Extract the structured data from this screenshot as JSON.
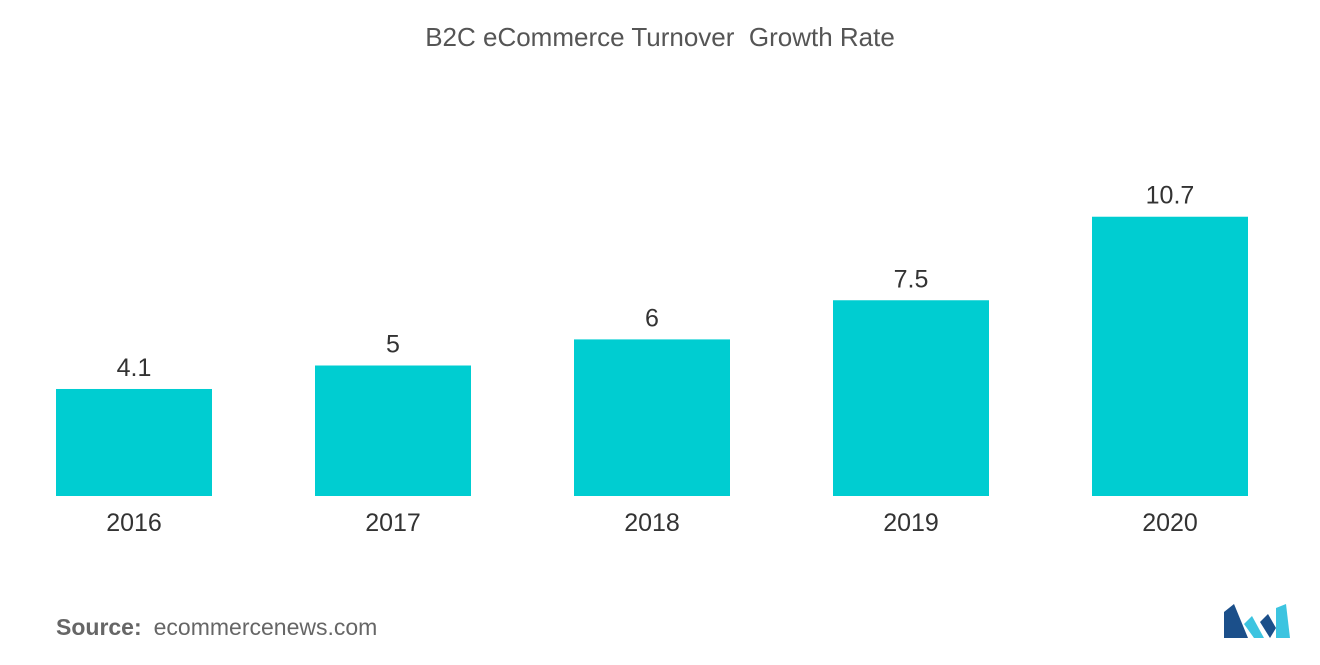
{
  "chart_data": {
    "type": "bar",
    "title": "B2C eCommerce Turnover  Growth Rate",
    "categories": [
      "2016",
      "2017",
      "2018",
      "2019",
      "2020"
    ],
    "values": [
      4.1,
      5,
      6,
      7.5,
      10.7
    ],
    "value_labels": [
      "4.1",
      "5",
      "6",
      "7.5",
      "10.7"
    ],
    "xlabel": "",
    "ylabel": "",
    "ylim": [
      0,
      12
    ],
    "grid": false,
    "legend": "none",
    "bar_color": "#00CDD1"
  },
  "source": {
    "label": "Source:",
    "text": "ecommercenews.com"
  },
  "logo": {
    "icon": "mordor-intelligence-logo-icon",
    "color_dark": "#1B4F8A",
    "color_light": "#3CC4E0"
  }
}
